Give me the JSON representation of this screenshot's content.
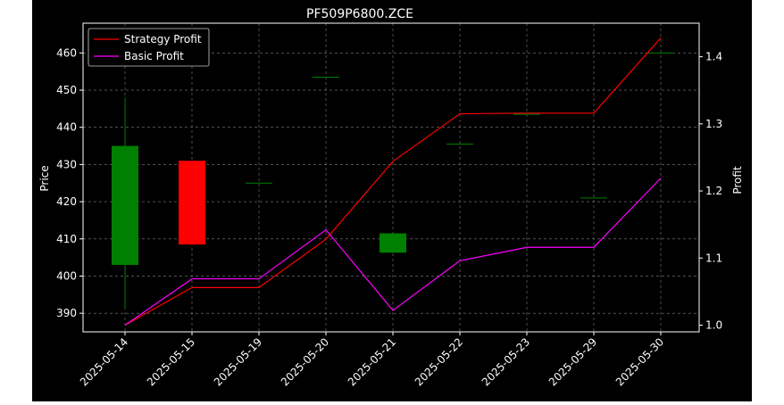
{
  "chart_data": {
    "type": "candlestick+line",
    "title": "PF509P6800.ZCE",
    "ylabel_left": "Price",
    "ylabel_right": "Profit",
    "xlabel": "",
    "categories": [
      "2025-05-14",
      "2025-05-15",
      "2025-05-19",
      "2025-05-20",
      "2025-05-21",
      "2025-05-22",
      "2025-05-23",
      "2025-05-29",
      "2025-05-30"
    ],
    "ylim_left": [
      385,
      468
    ],
    "ylim_right": [
      0.99,
      1.45
    ],
    "yticks_left": [
      390,
      400,
      410,
      420,
      430,
      440,
      450,
      460
    ],
    "yticks_right": [
      1.0,
      1.1,
      1.2,
      1.3,
      1.4
    ],
    "ytick_labels_left": [
      "390",
      "400",
      "410",
      "420",
      "430",
      "440",
      "450",
      "460"
    ],
    "ytick_labels_right": [
      "1.0",
      "1.1",
      "1.2",
      "1.3",
      "1.4"
    ],
    "grid": true,
    "legend_position": "top-left",
    "colors": {
      "up": "#008000",
      "down": "#ff0000",
      "strategy": "#ff0000",
      "basic": "#ff00ff",
      "background": "#000000",
      "grid": "#808080"
    },
    "candles": [
      {
        "date": "2025-05-14",
        "open": 403,
        "close": 435,
        "high": 448,
        "low": 391
      },
      {
        "date": "2025-05-15",
        "open": 431,
        "close": 408.5,
        "high": 431,
        "low": 408.5
      },
      {
        "date": "2025-05-19",
        "open": 425,
        "close": 425,
        "high": 425,
        "low": 425
      },
      {
        "date": "2025-05-20",
        "open": 453.5,
        "close": 453.5,
        "high": 453.5,
        "low": 453.5
      },
      {
        "date": "2025-05-21",
        "open": 406.3,
        "close": 411.5,
        "high": 411.5,
        "low": 406.3
      },
      {
        "date": "2025-05-22",
        "open": 435.5,
        "close": 435.5,
        "high": 435.5,
        "low": 435.5
      },
      {
        "date": "2025-05-23",
        "open": 443.5,
        "close": 443.5,
        "high": 443.5,
        "low": 443.5
      },
      {
        "date": "2025-05-29",
        "open": 421,
        "close": 421,
        "high": 421,
        "low": 421
      },
      {
        "date": "2025-05-30",
        "open": 460,
        "close": 460,
        "high": 460,
        "low": 460
      }
    ],
    "series": [
      {
        "name": "Strategy Profit",
        "axis": "right",
        "values": [
          1.0,
          1.056,
          1.056,
          1.128,
          1.244,
          1.315,
          1.316,
          1.316,
          1.428
        ]
      },
      {
        "name": "Basic Profit",
        "axis": "right",
        "values": [
          1.0,
          1.069,
          1.069,
          1.142,
          1.022,
          1.096,
          1.116,
          1.116,
          1.219
        ]
      }
    ]
  }
}
